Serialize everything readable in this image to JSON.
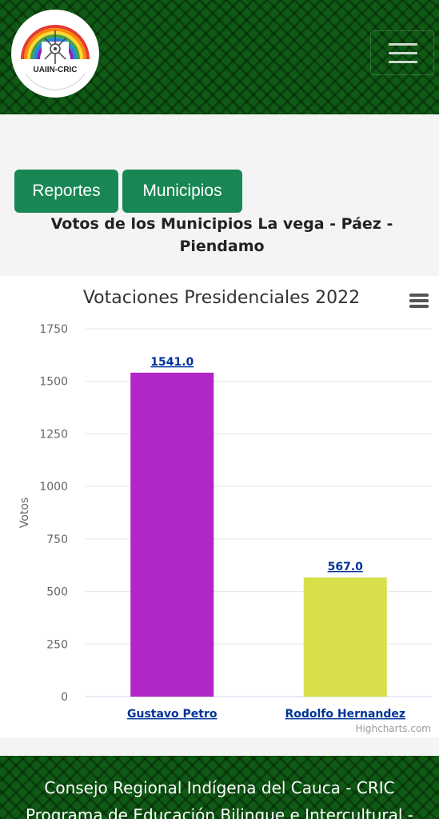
{
  "header": {
    "logo_text": "UAIIN-CRIC",
    "logo_arc_text": "Universidad Autónoma Indígena Intercultural",
    "menu_icon": "hamburger-menu-icon"
  },
  "nav": {
    "buttons": [
      "Reportes",
      "Municipios"
    ]
  },
  "page_heading": "Votos de los Municipios La vega - Páez - Piendamo",
  "chart": {
    "context_menu_icon": "hamburger-menu-icon",
    "credits": "Highcharts.com"
  },
  "chart_data": {
    "type": "bar",
    "title": "Votaciones Presidenciales 2022",
    "xlabel": "",
    "ylabel": "Votos",
    "categories": [
      "Gustavo Petro",
      "Rodolfo Hernandez"
    ],
    "values": [
      1541.0,
      567.0
    ],
    "data_labels": [
      "1541.0",
      "567.0"
    ],
    "colors": [
      "#b026c6",
      "#d7e04a"
    ],
    "ylim": [
      0,
      1750
    ],
    "yticks": [
      0,
      250,
      500,
      750,
      1000,
      1250,
      1500,
      1750
    ],
    "grid": true,
    "legend": "none"
  },
  "footer": {
    "lines": [
      "Consejo Regional Indígena del Cauca - CRIC",
      "Programa de Educación Bilingue e Intercultural -"
    ]
  }
}
